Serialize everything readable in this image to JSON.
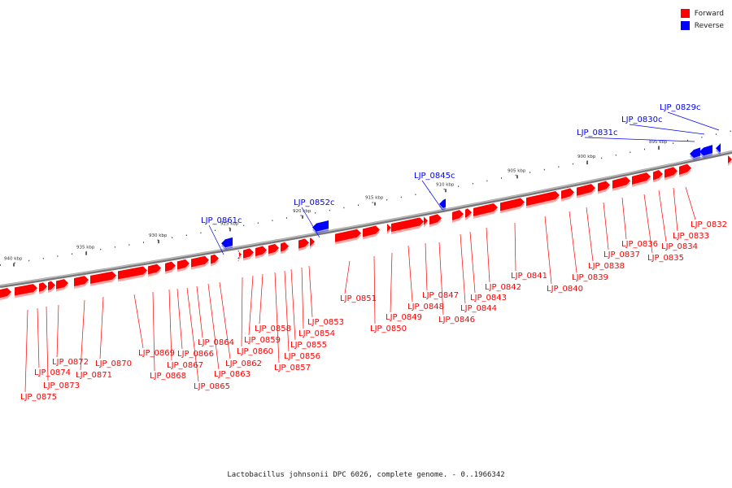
{
  "legend": {
    "forward_label": "Forward",
    "reverse_label": "Reverse",
    "forward_color": "#ff0000",
    "reverse_color": "#0000ff"
  },
  "caption": "Lactobacillus johnsonii DPC 6026, complete genome. - 0..1966342",
  "ticks": [
    {
      "label": "895 kbp",
      "kbp": 895
    },
    {
      "label": "900 kbp",
      "kbp": 900
    },
    {
      "label": "905 kbp",
      "kbp": 905
    },
    {
      "label": "910 kbp",
      "kbp": 910
    },
    {
      "label": "915 kbp",
      "kbp": 915
    },
    {
      "label": "920 kbp",
      "kbp": 920
    },
    {
      "label": "925 kbp",
      "kbp": 925
    },
    {
      "label": "930 kbp",
      "kbp": 930
    },
    {
      "label": "935 kbp",
      "kbp": 935
    },
    {
      "label": "940 kbp",
      "kbp": 940
    }
  ],
  "reverse_genes": [
    {
      "label": "LJP_0829c"
    },
    {
      "label": "LJP_0830c"
    },
    {
      "label": "LJP_0831c"
    },
    {
      "label": "LJP_0845c"
    },
    {
      "label": "LJP_0852c"
    },
    {
      "label": "LJP_0861c"
    }
  ],
  "forward_genes": [
    {
      "label": "LJP_0832"
    },
    {
      "label": "LJP_0833"
    },
    {
      "label": "LJP_0834"
    },
    {
      "label": "LJP_0835"
    },
    {
      "label": "LJP_0836"
    },
    {
      "label": "LJP_0837"
    },
    {
      "label": "LJP_0838"
    },
    {
      "label": "LJP_0839"
    },
    {
      "label": "LJP_0840"
    },
    {
      "label": "LJP_0841"
    },
    {
      "label": "LJP_0842"
    },
    {
      "label": "LJP_0843"
    },
    {
      "label": "LJP_0844"
    },
    {
      "label": "LJP_0846"
    },
    {
      "label": "LJP_0847"
    },
    {
      "label": "LJP_0848"
    },
    {
      "label": "LJP_0849"
    },
    {
      "label": "LJP_0850"
    },
    {
      "label": "LJP_0851"
    },
    {
      "label": "LJP_0853"
    },
    {
      "label": "LJP_0854"
    },
    {
      "label": "LJP_0855"
    },
    {
      "label": "LJP_0856"
    },
    {
      "label": "LJP_0857"
    },
    {
      "label": "LJP_0858"
    },
    {
      "label": "LJP_0859"
    },
    {
      "label": "LJP_0860"
    },
    {
      "label": "LJP_0862"
    },
    {
      "label": "LJP_0863"
    },
    {
      "label": "LJP_0864"
    },
    {
      "label": "LJP_0865"
    },
    {
      "label": "LJP_0866"
    },
    {
      "label": "LJP_0867"
    },
    {
      "label": "LJP_0868"
    },
    {
      "label": "LJP_0869"
    },
    {
      "label": "LJP_0870"
    },
    {
      "label": "LJP_0871"
    },
    {
      "label": "LJP_0872"
    },
    {
      "label": "LJP_0873"
    },
    {
      "label": "LJP_0874"
    },
    {
      "label": "LJP_0875"
    }
  ]
}
